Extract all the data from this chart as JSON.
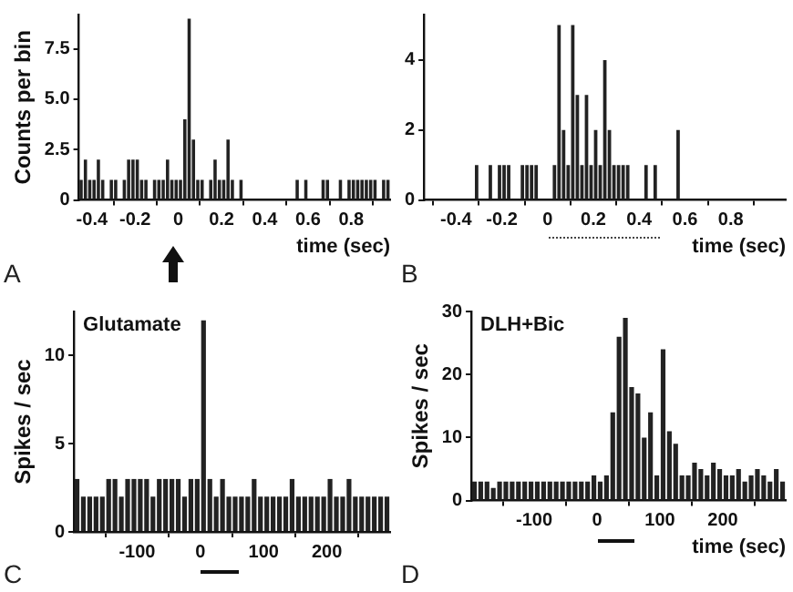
{
  "chart_data": [
    {
      "type": "histogram",
      "xlabel": "time (sec)",
      "ylabel": "Counts per bin",
      "annotations": [
        "A"
      ],
      "color": "#222222",
      "bins": [
        -0.46,
        -0.44,
        -0.42,
        -0.4,
        -0.38,
        -0.36,
        -0.34,
        -0.32,
        -0.3,
        -0.28,
        -0.26,
        -0.24,
        -0.22,
        -0.2,
        -0.18,
        -0.16,
        -0.14,
        -0.12,
        -0.1,
        -0.08,
        -0.06,
        -0.04,
        -0.02,
        0,
        0.02,
        0.04,
        0.06,
        0.08,
        0.1,
        0.12,
        0.14,
        0.16,
        0.18,
        0.2,
        0.22,
        0.24,
        0.26,
        0.28,
        0.3,
        0.32,
        0.34,
        0.36,
        0.38,
        0.4,
        0.42,
        0.44,
        0.46,
        0.48,
        0.5,
        0.52,
        0.54,
        0.56,
        0.58,
        0.6,
        0.62,
        0.64,
        0.66,
        0.68,
        0.7,
        0.72,
        0.74,
        0.76,
        0.78,
        0.8,
        0.82,
        0.84,
        0.86,
        0.88,
        0.9,
        0.92,
        0.94,
        0.96,
        0.98
      ],
      "values": [
        1,
        2,
        1,
        1,
        2,
        1,
        0,
        1,
        1,
        0,
        1,
        2,
        2,
        2,
        1,
        1,
        0,
        1,
        1,
        1,
        2,
        1,
        1,
        1,
        4,
        9,
        3,
        1,
        1,
        0,
        1,
        2,
        1,
        1,
        3,
        1,
        0,
        1,
        0,
        0,
        0,
        0,
        0,
        0,
        0,
        0,
        0,
        0,
        0,
        0,
        1,
        0,
        1,
        0,
        0,
        0,
        1,
        1,
        0,
        0,
        1,
        0,
        1,
        1,
        1,
        1,
        1,
        1,
        1,
        0,
        1,
        1
      ],
      "xlim": [
        -0.46,
        0.98
      ],
      "xticks": [
        -0.4,
        -0.2,
        0,
        0.2,
        0.4,
        0.6,
        0.8
      ],
      "ylim": [
        0,
        9.2
      ],
      "yticks": [
        0,
        2.5,
        {
          "value": 5,
          "label": "5.0"
        },
        7.5
      ]
    },
    {
      "type": "histogram",
      "xlabel": "time (sec)",
      "annotations": [
        "B"
      ],
      "color": "#222222",
      "bins": [
        -0.54,
        -0.52,
        -0.5,
        -0.48,
        -0.46,
        -0.44,
        -0.42,
        -0.4,
        -0.38,
        -0.36,
        -0.34,
        -0.32,
        -0.3,
        -0.28,
        -0.26,
        -0.24,
        -0.22,
        -0.2,
        -0.18,
        -0.16,
        -0.14,
        -0.12,
        -0.1,
        -0.08,
        -0.06,
        -0.04,
        -0.02,
        0,
        0.02,
        0.04,
        0.06,
        0.08,
        0.1,
        0.12,
        0.14,
        0.16,
        0.18,
        0.2,
        0.22,
        0.24,
        0.26,
        0.28,
        0.3,
        0.32,
        0.34,
        0.36,
        0.38,
        0.4,
        0.42,
        0.44,
        0.46,
        0.48,
        0.5,
        0.52,
        0.54,
        0.56,
        0.58
      ],
      "values": [
        0,
        0,
        0,
        0,
        0,
        0,
        0,
        0,
        0,
        0,
        0,
        1,
        0,
        0,
        1,
        0,
        1,
        1,
        1,
        0,
        0,
        1,
        1,
        1,
        1,
        0,
        0,
        0,
        1,
        5,
        2,
        1,
        5,
        3,
        1,
        3,
        1,
        2,
        1,
        4,
        2,
        1,
        1,
        1,
        1,
        0,
        0,
        0,
        1,
        0,
        1,
        0,
        0,
        0,
        0,
        2
      ],
      "xlim": [
        -0.54,
        1.04
      ],
      "xticks": [
        -0.4,
        -0.2,
        0,
        0.2,
        0.4,
        0.6,
        0.8
      ],
      "ylim": [
        0,
        5.3
      ],
      "yticks": [
        0,
        2,
        4
      ]
    },
    {
      "type": "histogram",
      "title": "Glutamate",
      "ylabel": "Spikes / sec",
      "annotations": [
        "C"
      ],
      "color": "#222222",
      "bins": [
        -200,
        -190,
        -180,
        -170,
        -160,
        -150,
        -140,
        -130,
        -120,
        -110,
        -100,
        -90,
        -80,
        -70,
        -60,
        -50,
        -40,
        -30,
        -20,
        -10,
        0,
        10,
        20,
        30,
        40,
        50,
        60,
        70,
        80,
        90,
        100,
        110,
        120,
        130,
        140,
        150,
        160,
        170,
        180,
        190,
        200,
        210,
        220,
        230,
        240,
        250,
        260,
        270,
        280,
        290,
        300
      ],
      "values": [
        3,
        2,
        2,
        2,
        2,
        3,
        3,
        2,
        3,
        3,
        3,
        3,
        2,
        3,
        3,
        3,
        3,
        2,
        3,
        3,
        12,
        3,
        2,
        3,
        2,
        2,
        2,
        2,
        3,
        2,
        2,
        2,
        2,
        2,
        3,
        2,
        2,
        2,
        2,
        2,
        3,
        2,
        2,
        3,
        2,
        2,
        2,
        2,
        2,
        2
      ],
      "xlim": [
        -200,
        300
      ],
      "xticks": [
        -100,
        0,
        100,
        200
      ],
      "ylim": [
        0,
        12.5
      ],
      "yticks": [
        0,
        5,
        10
      ]
    },
    {
      "type": "histogram",
      "title": "DLH+Bic",
      "xlabel": "time (sec)",
      "ylabel": "Spikes / sec",
      "annotations": [
        "D"
      ],
      "color": "#222222",
      "bins": [
        -200,
        -190,
        -180,
        -170,
        -160,
        -150,
        -140,
        -130,
        -120,
        -110,
        -100,
        -90,
        -80,
        -70,
        -60,
        -50,
        -40,
        -30,
        -20,
        -10,
        0,
        10,
        20,
        30,
        40,
        50,
        60,
        70,
        80,
        90,
        100,
        110,
        120,
        130,
        140,
        150,
        160,
        170,
        180,
        190,
        200,
        210,
        220,
        230,
        240,
        250,
        260,
        270,
        280,
        290,
        300
      ],
      "values": [
        3,
        3,
        3,
        2,
        3,
        3,
        3,
        3,
        3,
        3,
        3,
        3,
        3,
        3,
        3,
        3,
        3,
        3,
        3,
        4,
        3,
        4,
        14,
        26,
        29,
        18,
        17,
        10,
        14,
        4,
        24,
        11,
        9,
        4,
        4,
        6,
        5,
        4,
        6,
        5,
        4,
        4,
        5,
        3,
        4,
        5,
        4,
        3,
        5,
        3
      ],
      "xlim": [
        -200,
        300
      ],
      "xticks": [
        -100,
        0,
        100,
        200
      ],
      "ylim": [
        0,
        30
      ],
      "yticks": [
        0,
        10,
        20,
        30
      ]
    }
  ]
}
